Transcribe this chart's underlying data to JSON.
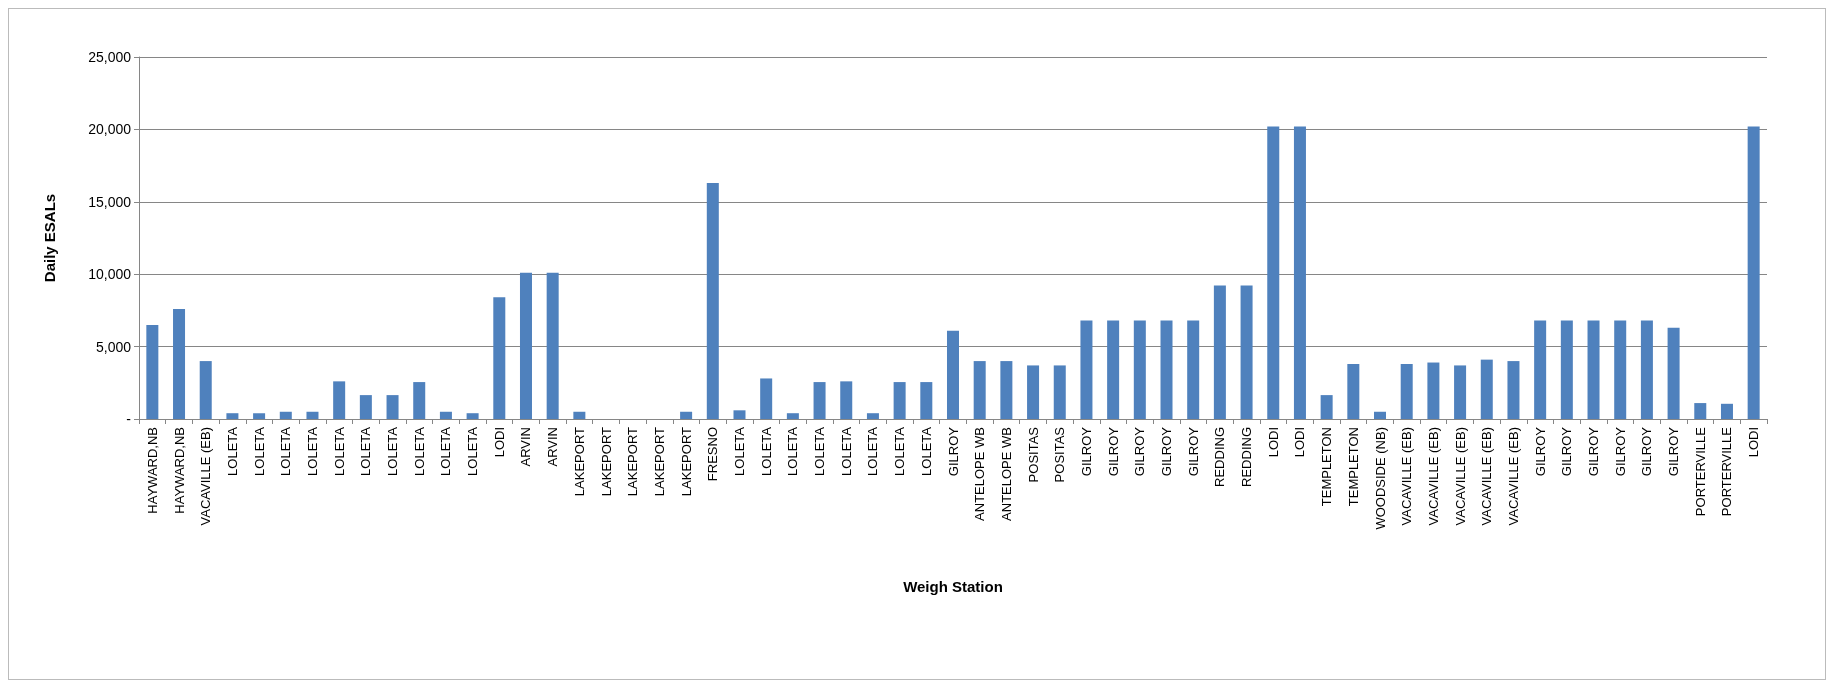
{
  "chart_data": {
    "type": "bar",
    "categories": [
      "HAYWARD,NB",
      "HAYWARD,NB",
      "VACAVILLE (EB)",
      "LOLETA",
      "LOLETA",
      "LOLETA",
      "LOLETA",
      "LOLETA",
      "LOLETA",
      "LOLETA",
      "LOLETA",
      "LOLETA",
      "LOLETA",
      "LODI",
      "ARVIN",
      "ARVIN",
      "LAKEPORT",
      "LAKEPORT",
      "LAKEPORT",
      "LAKEPORT",
      "LAKEPORT",
      "FRESNO",
      "LOLETA",
      "LOLETA",
      "LOLETA",
      "LOLETA",
      "LOLETA",
      "LOLETA",
      "LOLETA",
      "LOLETA",
      "GILROY",
      "ANTELOPE WB",
      "ANTELOPE WB",
      "POSITAS",
      "POSITAS",
      "GILROY",
      "GILROY",
      "GILROY",
      "GILROY",
      "GILROY",
      "REDDING",
      "REDDING",
      "LODI",
      "LODI",
      "TEMPLETON",
      "TEMPLETON",
      "WOODSIDE (NB)",
      "VACAVILLE (EB)",
      "VACAVILLE (EB)",
      "VACAVILLE (EB)",
      "VACAVILLE (EB)",
      "VACAVILLE (EB)",
      "GILROY",
      "GILROY",
      "GILROY",
      "GILROY",
      "GILROY",
      "GILROY",
      "PORTERVILLE",
      "PORTERVILLE",
      "LODI"
    ],
    "values": [
      6500,
      7600,
      4000,
      400,
      400,
      500,
      500,
      2600,
      1650,
      1650,
      2550,
      500,
      400,
      8400,
      10100,
      10100,
      500,
      0,
      0,
      0,
      500,
      16300,
      600,
      2800,
      400,
      2550,
      2600,
      400,
      2550,
      2550,
      6100,
      4000,
      4000,
      3700,
      3700,
      6800,
      6800,
      6800,
      6800,
      6800,
      9225,
      9225,
      20200,
      20200,
      1650,
      3800,
      500,
      3800,
      3900,
      3700,
      4100,
      4000,
      6800,
      6800,
      6800,
      6800,
      6800,
      6300,
      1100,
      1050,
      20200
    ],
    "color": "#4f81bd",
    "xlabel": "Weigh Station",
    "ylabel": "Daily ESALs",
    "ylim": [
      0,
      25000
    ],
    "yticks": [
      {
        "value": 0,
        "label": "-"
      },
      {
        "value": 5000,
        "label": "5,000"
      },
      {
        "value": 10000,
        "label": "10,000"
      },
      {
        "value": 15000,
        "label": "15,000"
      },
      {
        "value": 20000,
        "label": "20,000"
      },
      {
        "value": 25000,
        "label": "25,000"
      }
    ],
    "grid": "y"
  }
}
